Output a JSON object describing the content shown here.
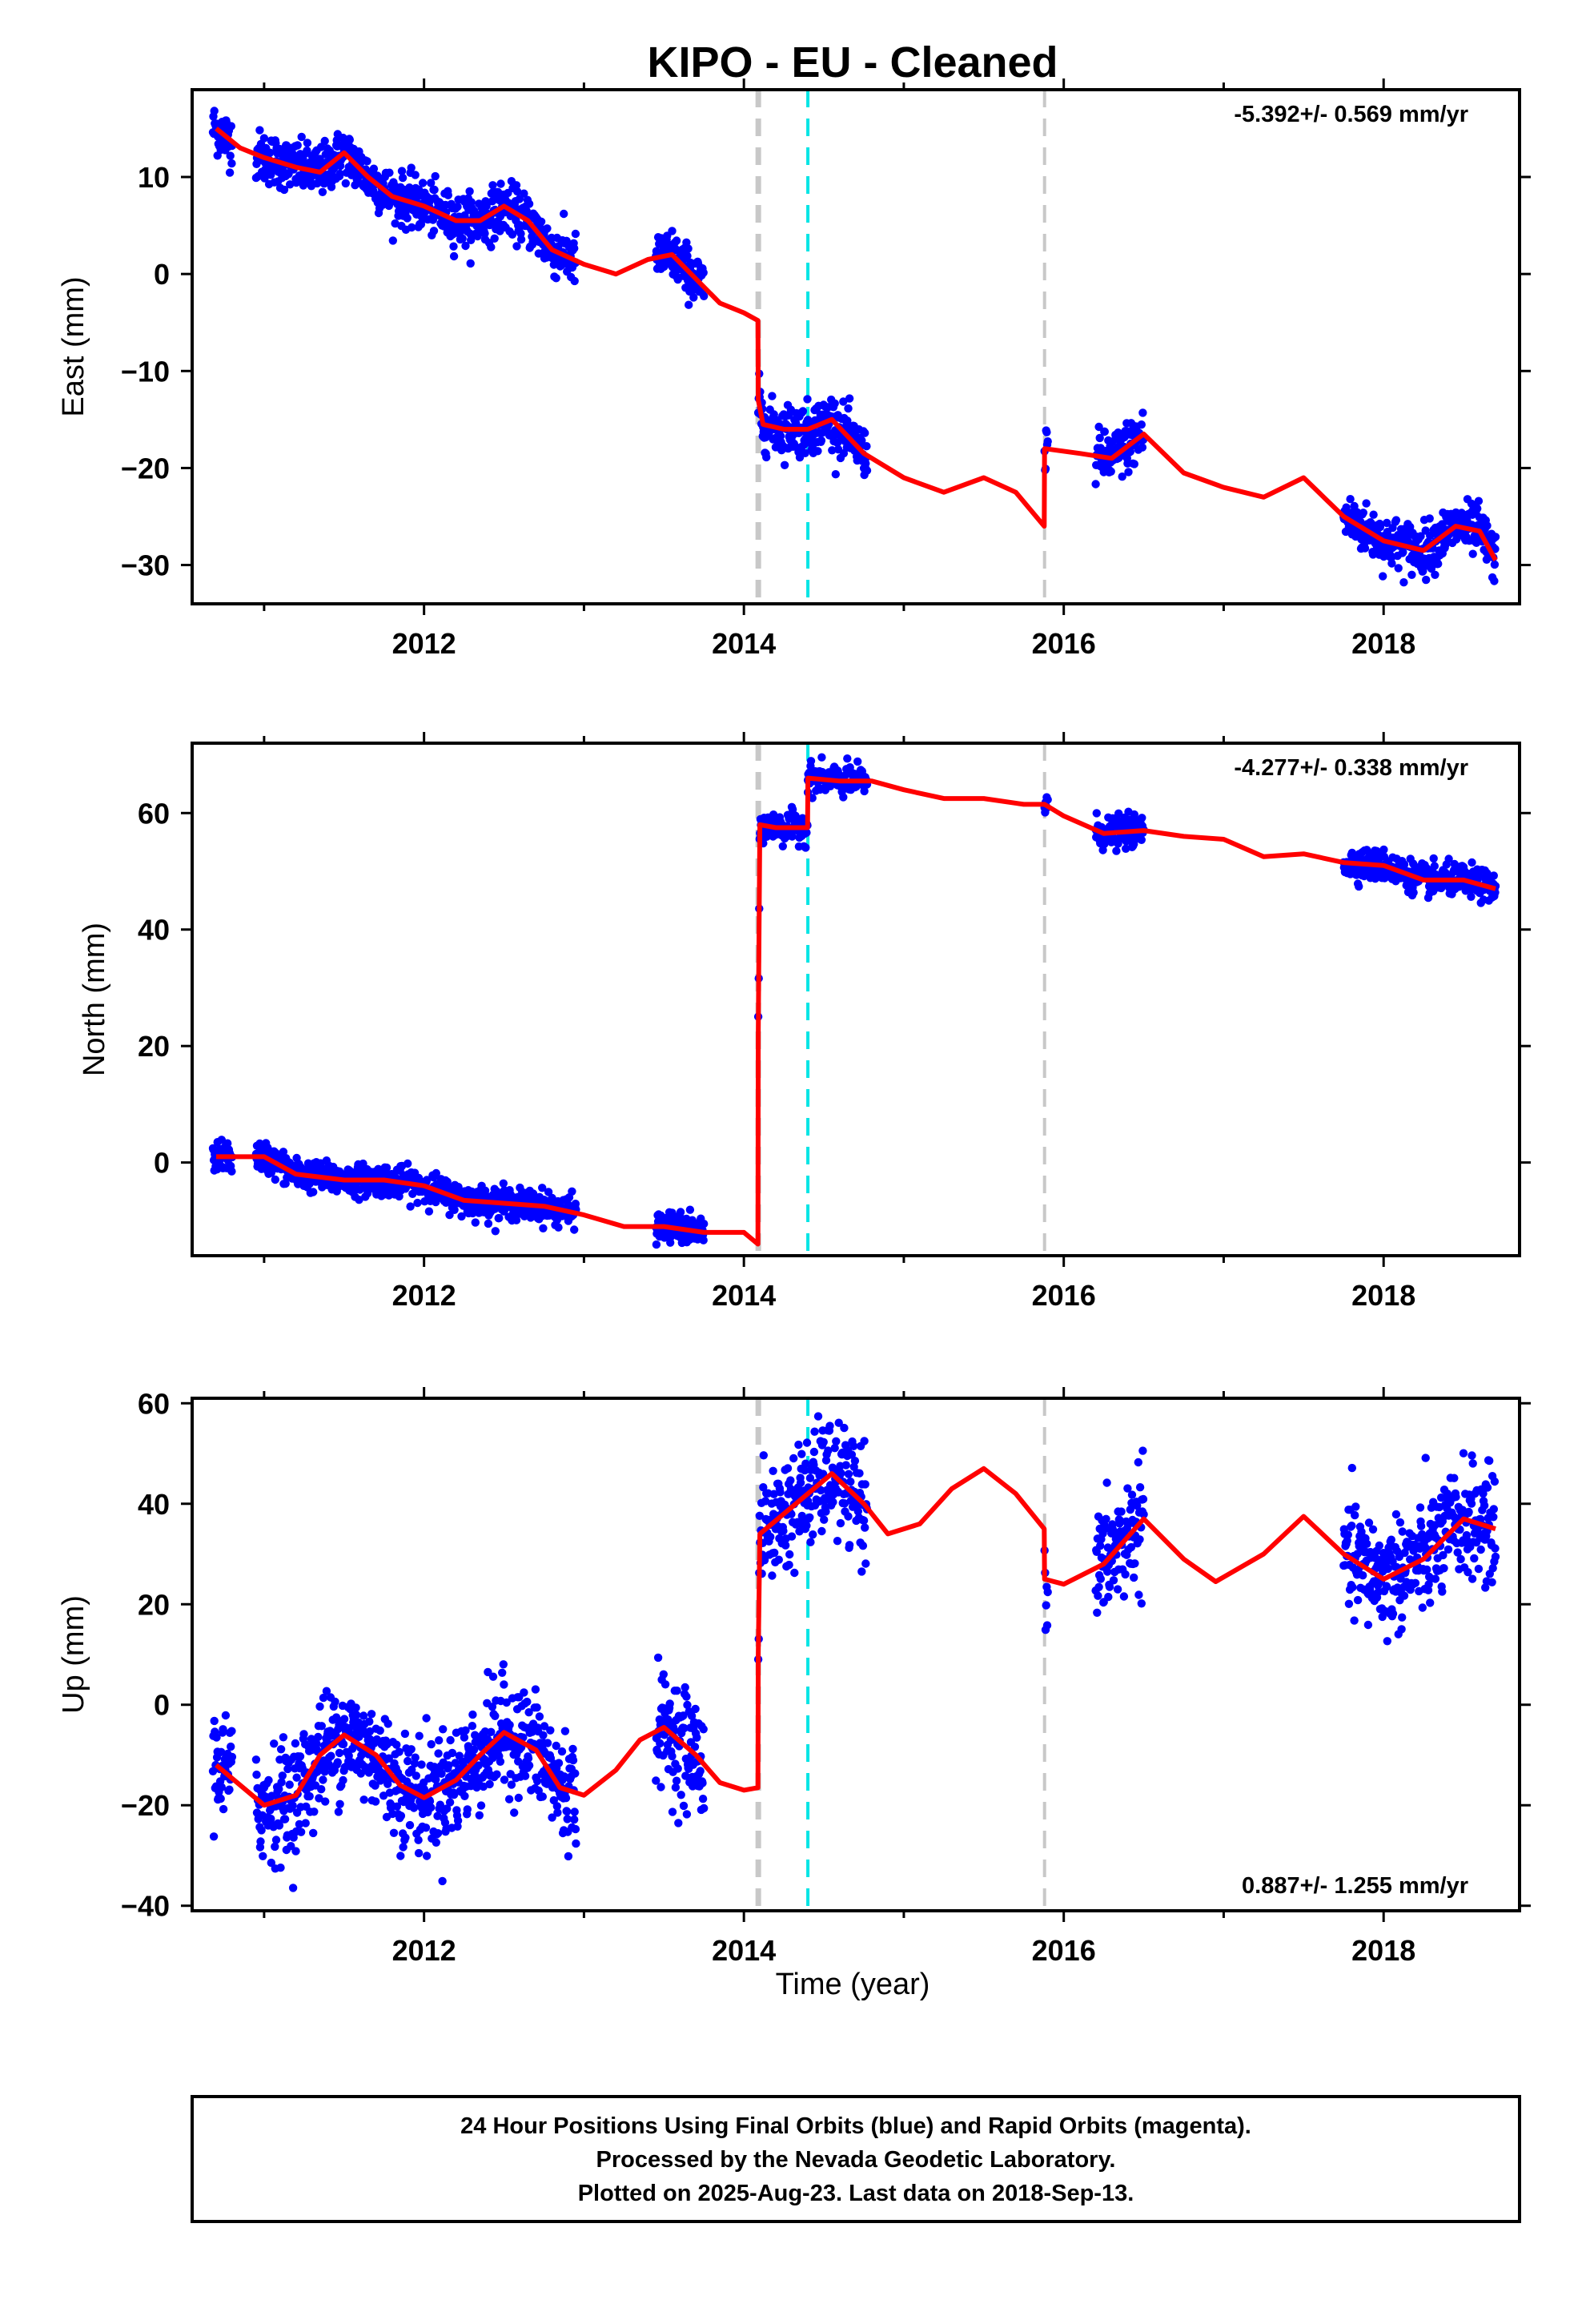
{
  "title": "KIPO  - EU - Cleaned",
  "xlabel": "Time (year)",
  "colors": {
    "final_orbits": "#0000ff",
    "model": "#ff0000",
    "break_gray": "#c8c8c8",
    "break_cyan": "#00e5e5"
  },
  "footer": {
    "line1": "24 Hour Positions Using Final Orbits (blue) and Rapid Orbits (magenta).",
    "line2": "Processed by the Nevada Geodetic Laboratory.",
    "line3": "Plotted on 2025-Aug-23. Last data on 2018-Sep-13."
  },
  "chart_data": [
    {
      "type": "scatter",
      "component": "East",
      "ylabel": "East (mm)",
      "rate": "-5.392+/- 0.569 mm/yr",
      "rate_position": "top-right",
      "xlim": [
        2010.55,
        2018.85
      ],
      "ylim": [
        -34,
        19
      ],
      "xticks": [
        2012,
        2014,
        2016,
        2018
      ],
      "yticks": [
        -30,
        -20,
        -10,
        0,
        10
      ],
      "breaks": [
        {
          "x": 2014.09,
          "style": "gray-thick"
        },
        {
          "x": 2014.4,
          "style": "cyan"
        },
        {
          "x": 2015.88,
          "style": "gray"
        }
      ],
      "data_segments": [
        [
          2010.68,
          2010.8
        ],
        [
          2010.95,
          2011.92
        ],
        [
          2011.92,
          2012.75
        ],
        [
          2012.75,
          2012.95
        ],
        [
          2013.45,
          2013.75
        ],
        [
          2014.09,
          2014.4
        ],
        [
          2014.4,
          2014.77
        ],
        [
          2015.88,
          2015.9
        ],
        [
          2016.2,
          2016.5
        ],
        [
          2017.75,
          2018.7
        ]
      ],
      "model": {
        "x": [
          2010.7,
          2010.85,
          2011.0,
          2011.2,
          2011.35,
          2011.5,
          2011.65,
          2011.8,
          2012.0,
          2012.2,
          2012.35,
          2012.5,
          2012.65,
          2012.8,
          2013.0,
          2013.2,
          2013.4,
          2013.55,
          2013.7,
          2013.85,
          2014.0,
          2014.088,
          2014.09,
          2014.12,
          2014.25,
          2014.4,
          2014.55,
          2014.75,
          2015.0,
          2015.25,
          2015.5,
          2015.7,
          2015.878,
          2015.88,
          2016.1,
          2016.3,
          2016.5,
          2016.75,
          2017.0,
          2017.25,
          2017.5,
          2017.75,
          2018.0,
          2018.25,
          2018.45,
          2018.6,
          2018.7
        ],
        "y": [
          15,
          13,
          12,
          11,
          10.5,
          12.5,
          10,
          8,
          7,
          5.5,
          5.5,
          7,
          5.5,
          2.5,
          1,
          0,
          1.5,
          2,
          -0.5,
          -3,
          -4,
          -4.8,
          -13,
          -15.5,
          -16,
          -16,
          -15,
          -18.5,
          -21,
          -22.5,
          -21,
          -22.5,
          -26,
          -18,
          -18.5,
          -19,
          -16.5,
          -20.5,
          -22,
          -23,
          -21,
          -25,
          -27.5,
          -28.5,
          -26,
          -26.5,
          -29.5
        ]
      }
    },
    {
      "type": "scatter",
      "component": "North",
      "ylabel": "North (mm)",
      "rate": "-4.277+/- 0.338 mm/yr",
      "rate_position": "top-right",
      "xlim": [
        2010.55,
        2018.85
      ],
      "ylim": [
        -16,
        72
      ],
      "xticks": [
        2012,
        2014,
        2016,
        2018
      ],
      "yticks": [
        0,
        20,
        40,
        60
      ],
      "breaks": [
        {
          "x": 2014.09,
          "style": "gray-thick"
        },
        {
          "x": 2014.4,
          "style": "cyan"
        },
        {
          "x": 2015.88,
          "style": "gray"
        }
      ],
      "data_segments": [
        [
          2010.68,
          2010.8
        ],
        [
          2010.95,
          2011.92
        ],
        [
          2011.92,
          2012.75
        ],
        [
          2012.75,
          2012.95
        ],
        [
          2013.45,
          2013.75
        ],
        [
          2014.09,
          2014.4
        ],
        [
          2014.4,
          2014.77
        ],
        [
          2015.88,
          2015.9
        ],
        [
          2016.2,
          2016.5
        ],
        [
          2017.75,
          2018.7
        ]
      ],
      "model": {
        "x": [
          2010.7,
          2011.0,
          2011.2,
          2011.5,
          2011.75,
          2012.0,
          2012.25,
          2012.5,
          2012.75,
          2013.0,
          2013.25,
          2013.5,
          2013.75,
          2014.0,
          2014.088,
          2014.09,
          2014.1,
          2014.2,
          2014.35,
          2014.398,
          2014.4,
          2014.6,
          2014.8,
          2015.0,
          2015.25,
          2015.5,
          2015.75,
          2015.88,
          2016.0,
          2016.25,
          2016.5,
          2016.75,
          2017.0,
          2017.25,
          2017.5,
          2017.75,
          2018.0,
          2018.25,
          2018.5,
          2018.7
        ],
        "y": [
          1,
          1,
          -2,
          -3,
          -3,
          -4,
          -6.5,
          -7,
          -7.5,
          -9,
          -11,
          -11,
          -12,
          -12,
          -14,
          22,
          58,
          57.5,
          57.5,
          57.5,
          66,
          65.5,
          65.5,
          64,
          62.5,
          62.5,
          61.5,
          61.5,
          59.5,
          56.5,
          57,
          56,
          55.5,
          52.5,
          53,
          51.5,
          51,
          48.5,
          48.5,
          47
        ]
      }
    },
    {
      "type": "scatter",
      "component": "Up",
      "ylabel": "Up (mm)",
      "rate": "0.887+/- 1.255 mm/yr",
      "rate_position": "bottom-right",
      "xlim": [
        2010.55,
        2018.85
      ],
      "ylim": [
        -41,
        61
      ],
      "xticks": [
        2012,
        2014,
        2016,
        2018
      ],
      "yticks": [
        -40,
        -20,
        0,
        20,
        40,
        60
      ],
      "breaks": [
        {
          "x": 2014.09,
          "style": "gray-thick"
        },
        {
          "x": 2014.4,
          "style": "cyan"
        },
        {
          "x": 2015.88,
          "style": "gray"
        }
      ],
      "data_segments": [
        [
          2010.68,
          2010.8
        ],
        [
          2010.95,
          2011.92
        ],
        [
          2011.92,
          2012.75
        ],
        [
          2012.75,
          2012.95
        ],
        [
          2013.45,
          2013.75
        ],
        [
          2014.09,
          2014.4
        ],
        [
          2014.4,
          2014.77
        ],
        [
          2015.88,
          2015.9
        ],
        [
          2016.2,
          2016.5
        ],
        [
          2017.75,
          2018.7
        ]
      ],
      "model": {
        "x": [
          2010.7,
          2010.85,
          2011.0,
          2011.2,
          2011.35,
          2011.5,
          2011.7,
          2011.85,
          2012.0,
          2012.2,
          2012.35,
          2012.5,
          2012.7,
          2012.85,
          2013.0,
          2013.2,
          2013.35,
          2013.5,
          2013.7,
          2013.85,
          2014.0,
          2014.088,
          2014.09,
          2014.1,
          2014.25,
          2014.4,
          2014.55,
          2014.75,
          2014.9,
          2015.1,
          2015.3,
          2015.5,
          2015.7,
          2015.878,
          2015.88,
          2016.0,
          2016.25,
          2016.5,
          2016.75,
          2016.95,
          2017.25,
          2017.5,
          2017.75,
          2018.0,
          2018.25,
          2018.5,
          2018.7
        ],
        "y": [
          -12,
          -16,
          -20,
          -18,
          -10,
          -6,
          -10,
          -16,
          -18.5,
          -15,
          -10,
          -5.5,
          -9,
          -16.5,
          -18,
          -13,
          -7,
          -4.5,
          -10,
          -15.5,
          -17,
          -16.5,
          10,
          34,
          38,
          42,
          46,
          40,
          34,
          36,
          43,
          47,
          42,
          35,
          25,
          24,
          28,
          37,
          29,
          24.5,
          30,
          37.5,
          30,
          25,
          29,
          37,
          35
        ]
      }
    }
  ]
}
